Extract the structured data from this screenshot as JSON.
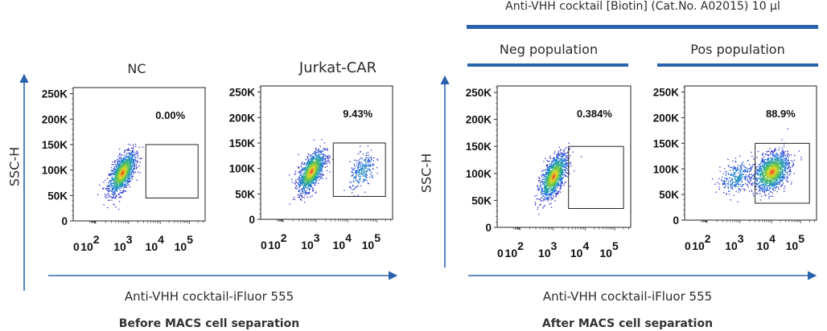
{
  "figure": {
    "treatment_header": "Anti-VHH cocktail [Biotin] (Cat.No. A02015)  10 μl",
    "left_panel": {
      "y_axis_label": "SSC-H",
      "x_axis_label": "Anti-VHH cocktail-iFluor 555",
      "caption": "Before MACS cell separation"
    },
    "right_panel": {
      "y_axis_label": "SSC-H",
      "x_axis_label": "Anti-VHH cocktail-iFluor 555",
      "caption": "After MACS cell separation",
      "group_labels": [
        "Neg population",
        "Pos population"
      ]
    },
    "accent_color": "#2a63ad"
  },
  "chart_data": [
    {
      "type": "scatter",
      "title": "NC",
      "xlabel": "Anti-VHH cocktail-iFluor 555",
      "ylabel": "SSC-H",
      "x_scale": "biexponential",
      "x_ticks": [
        "0",
        "10^2",
        "10^3",
        "10^4",
        "10^5"
      ],
      "y_ticks": [
        "0",
        "50K",
        "100K",
        "150K",
        "200K",
        "250K"
      ],
      "ylim": [
        0,
        262000
      ],
      "gate": {
        "x_range": [
          3500,
          200000
        ],
        "y_range": [
          45000,
          150000
        ],
        "percent": "0.00%"
      },
      "populations": [
        {
          "center_log10_x": 2.8,
          "center_y": 95000,
          "spread_log10_x": 0.2,
          "spread_y": 20000,
          "tilt": 0.6,
          "count": 1400
        }
      ]
    },
    {
      "type": "scatter",
      "title": "Jurkat-CAR",
      "xlabel": "Anti-VHH cocktail-iFluor 555",
      "ylabel": "SSC-H",
      "x_scale": "biexponential",
      "x_ticks": [
        "0",
        "10^2",
        "10^3",
        "10^4",
        "10^5"
      ],
      "y_ticks": [
        "0",
        "50K",
        "100K",
        "150K",
        "200K",
        "250K"
      ],
      "ylim": [
        0,
        262000
      ],
      "gate": {
        "x_range": [
          3500,
          200000
        ],
        "y_range": [
          45000,
          150000
        ],
        "percent": "9.43%"
      },
      "populations": [
        {
          "center_log10_x": 2.85,
          "center_y": 95000,
          "spread_log10_x": 0.2,
          "spread_y": 20000,
          "tilt": 0.6,
          "count": 1300
        },
        {
          "center_log10_x": 4.5,
          "center_y": 95000,
          "spread_log10_x": 0.22,
          "spread_y": 20000,
          "tilt": 0.4,
          "count": 260
        }
      ]
    },
    {
      "type": "scatter",
      "title": "Neg population",
      "xlabel": "Anti-VHH cocktail-iFluor 555",
      "ylabel": "SSC-H",
      "x_scale": "biexponential",
      "x_ticks": [
        "0",
        "10^2",
        "10^3",
        "10^4",
        "10^5"
      ],
      "y_ticks": [
        "0",
        "50K",
        "100K",
        "150K",
        "200K",
        "250K"
      ],
      "ylim": [
        0,
        262000
      ],
      "gate": {
        "x_range": [
          3000,
          200000
        ],
        "y_range": [
          35000,
          150000
        ],
        "percent": "0.384%"
      },
      "populations": [
        {
          "center_log10_x": 3.0,
          "center_y": 95000,
          "spread_log10_x": 0.2,
          "spread_y": 20000,
          "tilt": 0.6,
          "count": 1400
        }
      ]
    },
    {
      "type": "scatter",
      "title": "Pos population",
      "xlabel": "Anti-VHH cocktail-iFluor 555",
      "ylabel": "SSC-H",
      "x_scale": "biexponential",
      "x_ticks": [
        "0",
        "10^2",
        "10^3",
        "10^4",
        "10^5"
      ],
      "y_ticks": [
        "0",
        "50K",
        "100K",
        "150K",
        "200K",
        "250K"
      ],
      "ylim": [
        0,
        262000
      ],
      "gate": {
        "x_range": [
          3000,
          200000
        ],
        "y_range": [
          33000,
          150000
        ],
        "percent": "88.9%"
      },
      "populations": [
        {
          "center_log10_x": 2.9,
          "center_y": 85000,
          "spread_log10_x": 0.25,
          "spread_y": 18000,
          "tilt": 0.3,
          "count": 300
        },
        {
          "center_log10_x": 4.0,
          "center_y": 95000,
          "spread_log10_x": 0.28,
          "spread_y": 21000,
          "tilt": 0.3,
          "count": 1500
        }
      ]
    }
  ]
}
